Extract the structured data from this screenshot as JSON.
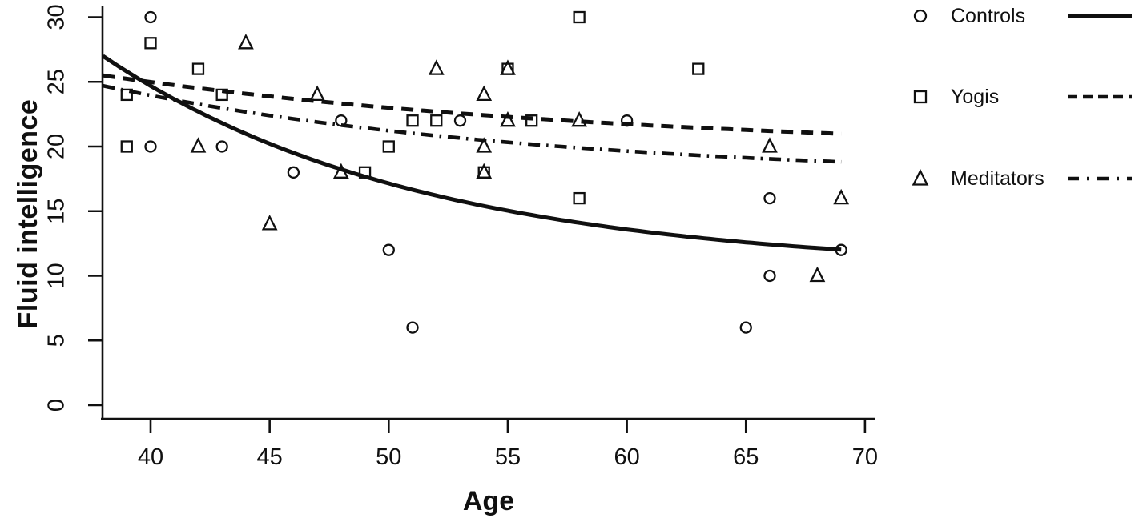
{
  "figure": {
    "background": "#ffffff",
    "ink_color": "#101010"
  },
  "chart_data": {
    "type": "scatter",
    "title": "",
    "xlabel": "Age",
    "ylabel": "Fluid intelligence",
    "xlim": [
      38,
      70
    ],
    "ylim": [
      0,
      30
    ],
    "xticks": [
      40,
      45,
      50,
      55,
      60,
      65,
      70
    ],
    "yticks": [
      0,
      5,
      10,
      15,
      20,
      25,
      30
    ],
    "grid": false,
    "legend_position": "right-outside",
    "series": [
      {
        "name": "Controls",
        "marker": "circle",
        "line_style": "solid",
        "points": [
          [
            40,
            30
          ],
          [
            40,
            20
          ],
          [
            43,
            20
          ],
          [
            46,
            18
          ],
          [
            48,
            22
          ],
          [
            50,
            12
          ],
          [
            51,
            6
          ],
          [
            53,
            22
          ],
          [
            60,
            22
          ],
          [
            65,
            6
          ],
          [
            66,
            16
          ],
          [
            66,
            10
          ],
          [
            69,
            12
          ]
        ],
        "trend": {
          "type": "exponential_decay",
          "formula": "y = c + a*exp(-b*(x-38))",
          "c": 10.4,
          "a": 16.6,
          "b": 0.075,
          "x_start": 38,
          "x_end": 69
        }
      },
      {
        "name": "Yogis",
        "marker": "square",
        "line_style": "dashed",
        "points": [
          [
            39,
            24
          ],
          [
            39,
            20
          ],
          [
            40,
            28
          ],
          [
            42,
            26
          ],
          [
            43,
            24
          ],
          [
            49,
            18
          ],
          [
            50,
            20
          ],
          [
            51,
            22
          ],
          [
            52,
            22
          ],
          [
            54,
            18
          ],
          [
            55,
            26
          ],
          [
            56,
            22
          ],
          [
            58,
            30
          ],
          [
            58,
            16
          ],
          [
            63,
            26
          ]
        ],
        "trend": {
          "type": "exponential_decay",
          "formula": "y = c + a*exp(-b*(x-38))",
          "c": 19.5,
          "a": 6.0,
          "b": 0.045,
          "x_start": 38,
          "x_end": 69.1
        }
      },
      {
        "name": "Meditators",
        "marker": "triangle",
        "line_style": "dash-dot",
        "points": [
          [
            42,
            20
          ],
          [
            44,
            28
          ],
          [
            45,
            14
          ],
          [
            47,
            24
          ],
          [
            48,
            18
          ],
          [
            52,
            26
          ],
          [
            54,
            24
          ],
          [
            54,
            20
          ],
          [
            54,
            18
          ],
          [
            55,
            26
          ],
          [
            55,
            22
          ],
          [
            58,
            22
          ],
          [
            66,
            20
          ],
          [
            68,
            10
          ],
          [
            69,
            16
          ]
        ],
        "trend": {
          "type": "exponential_decay",
          "formula": "y = c + a*exp(-b*(x-38))",
          "c": 17.5,
          "a": 7.2,
          "b": 0.055,
          "x_start": 38,
          "x_end": 69.2
        }
      }
    ]
  }
}
